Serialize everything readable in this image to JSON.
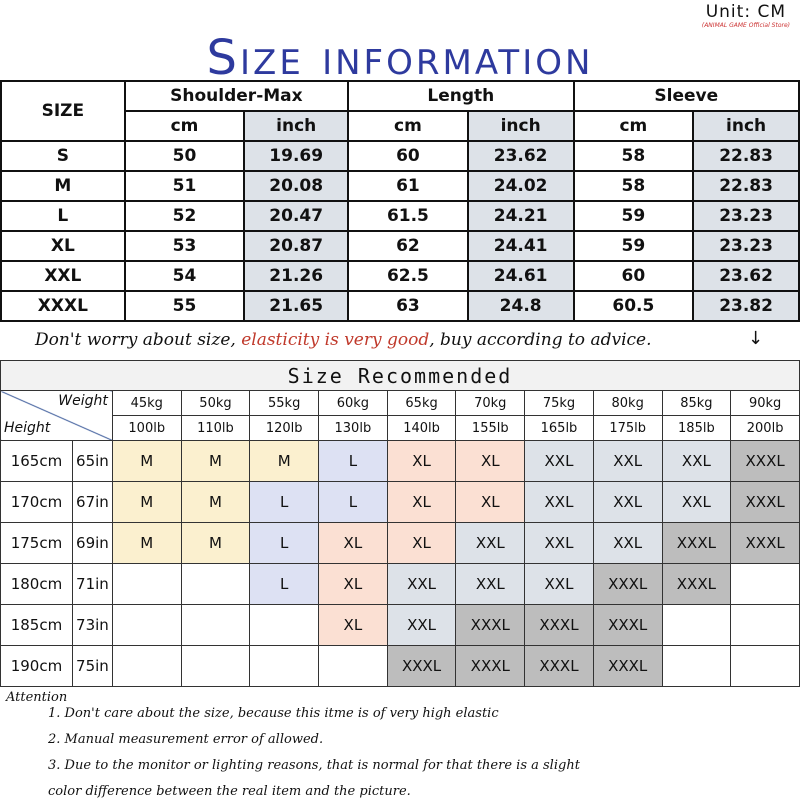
{
  "header": {
    "unit": "Unit: CM",
    "store": "(ANIMAL GAME Official Store)",
    "title": "Size information"
  },
  "size_table": {
    "size_label": "SIZE",
    "groups": [
      "Shoulder-Max",
      "Length",
      "Sleeve"
    ],
    "cm": "cm",
    "inch": "inch",
    "rows": [
      [
        "S",
        "50",
        "19.69",
        "60",
        "23.62",
        "58",
        "22.83"
      ],
      [
        "M",
        "51",
        "20.08",
        "61",
        "24.02",
        "58",
        "22.83"
      ],
      [
        "L",
        "52",
        "20.47",
        "61.5",
        "24.21",
        "59",
        "23.23"
      ],
      [
        "XL",
        "53",
        "20.87",
        "62",
        "24.41",
        "59",
        "23.23"
      ],
      [
        "XXL",
        "54",
        "21.26",
        "62.5",
        "24.61",
        "60",
        "23.62"
      ],
      [
        "XXXL",
        "55",
        "21.65",
        "63",
        "24.8",
        "60.5",
        "23.82"
      ]
    ]
  },
  "note": {
    "part1": "Don't worry about size, ",
    "part2": "elasticity is very good",
    "part3": ", buy according to advice.",
    "arrow": "↓"
  },
  "recommend": {
    "title": "Size Recommended",
    "weight_label": "Weight",
    "height_label": "Height",
    "kg": [
      "45kg",
      "50kg",
      "55kg",
      "60kg",
      "65kg",
      "70kg",
      "75kg",
      "80kg",
      "85kg",
      "90kg"
    ],
    "lb": [
      "100lb",
      "110lb",
      "120lb",
      "130lb",
      "140lb",
      "155lb",
      "165lb",
      "175lb",
      "185lb",
      "200lb"
    ],
    "rows": [
      {
        "cm": "165cm",
        "in": "65in",
        "sizes": [
          "M",
          "M",
          "M",
          "L",
          "XL",
          "XL",
          "XXL",
          "XXL",
          "XXL",
          "XXXL"
        ]
      },
      {
        "cm": "170cm",
        "in": "67in",
        "sizes": [
          "M",
          "M",
          "L",
          "L",
          "XL",
          "XL",
          "XXL",
          "XXL",
          "XXL",
          "XXXL"
        ]
      },
      {
        "cm": "175cm",
        "in": "69in",
        "sizes": [
          "M",
          "M",
          "L",
          "XL",
          "XL",
          "XXL",
          "XXL",
          "XXL",
          "XXXL",
          "XXXL"
        ]
      },
      {
        "cm": "180cm",
        "in": "71in",
        "sizes": [
          "",
          "",
          "L",
          "XL",
          "XXL",
          "XXL",
          "XXL",
          "XXXL",
          "XXXL",
          ""
        ]
      },
      {
        "cm": "185cm",
        "in": "73in",
        "sizes": [
          "",
          "",
          "",
          "XL",
          "XXL",
          "XXXL",
          "XXXL",
          "XXXL",
          "",
          ""
        ]
      },
      {
        "cm": "190cm",
        "in": "75in",
        "sizes": [
          "",
          "",
          "",
          "",
          "XXXL",
          "XXXL",
          "XXXL",
          "XXXL",
          "",
          ""
        ]
      }
    ],
    "colors": {
      "M": "#fbf0cf",
      "L": "#dde1f3",
      "XL": "#fbe0d3",
      "XXL": "#dde2e8",
      "XXXL": "#bdbdbd"
    }
  },
  "attention": {
    "title": "Attention",
    "items": [
      "1. Don't care about the size, because this itme is of very high elastic",
      "2. Manual measurement error of allowed.",
      "3.  Due to the monitor or lighting reasons, that is normal for that there is a slight",
      "color difference between the real item and the picture."
    ]
  }
}
